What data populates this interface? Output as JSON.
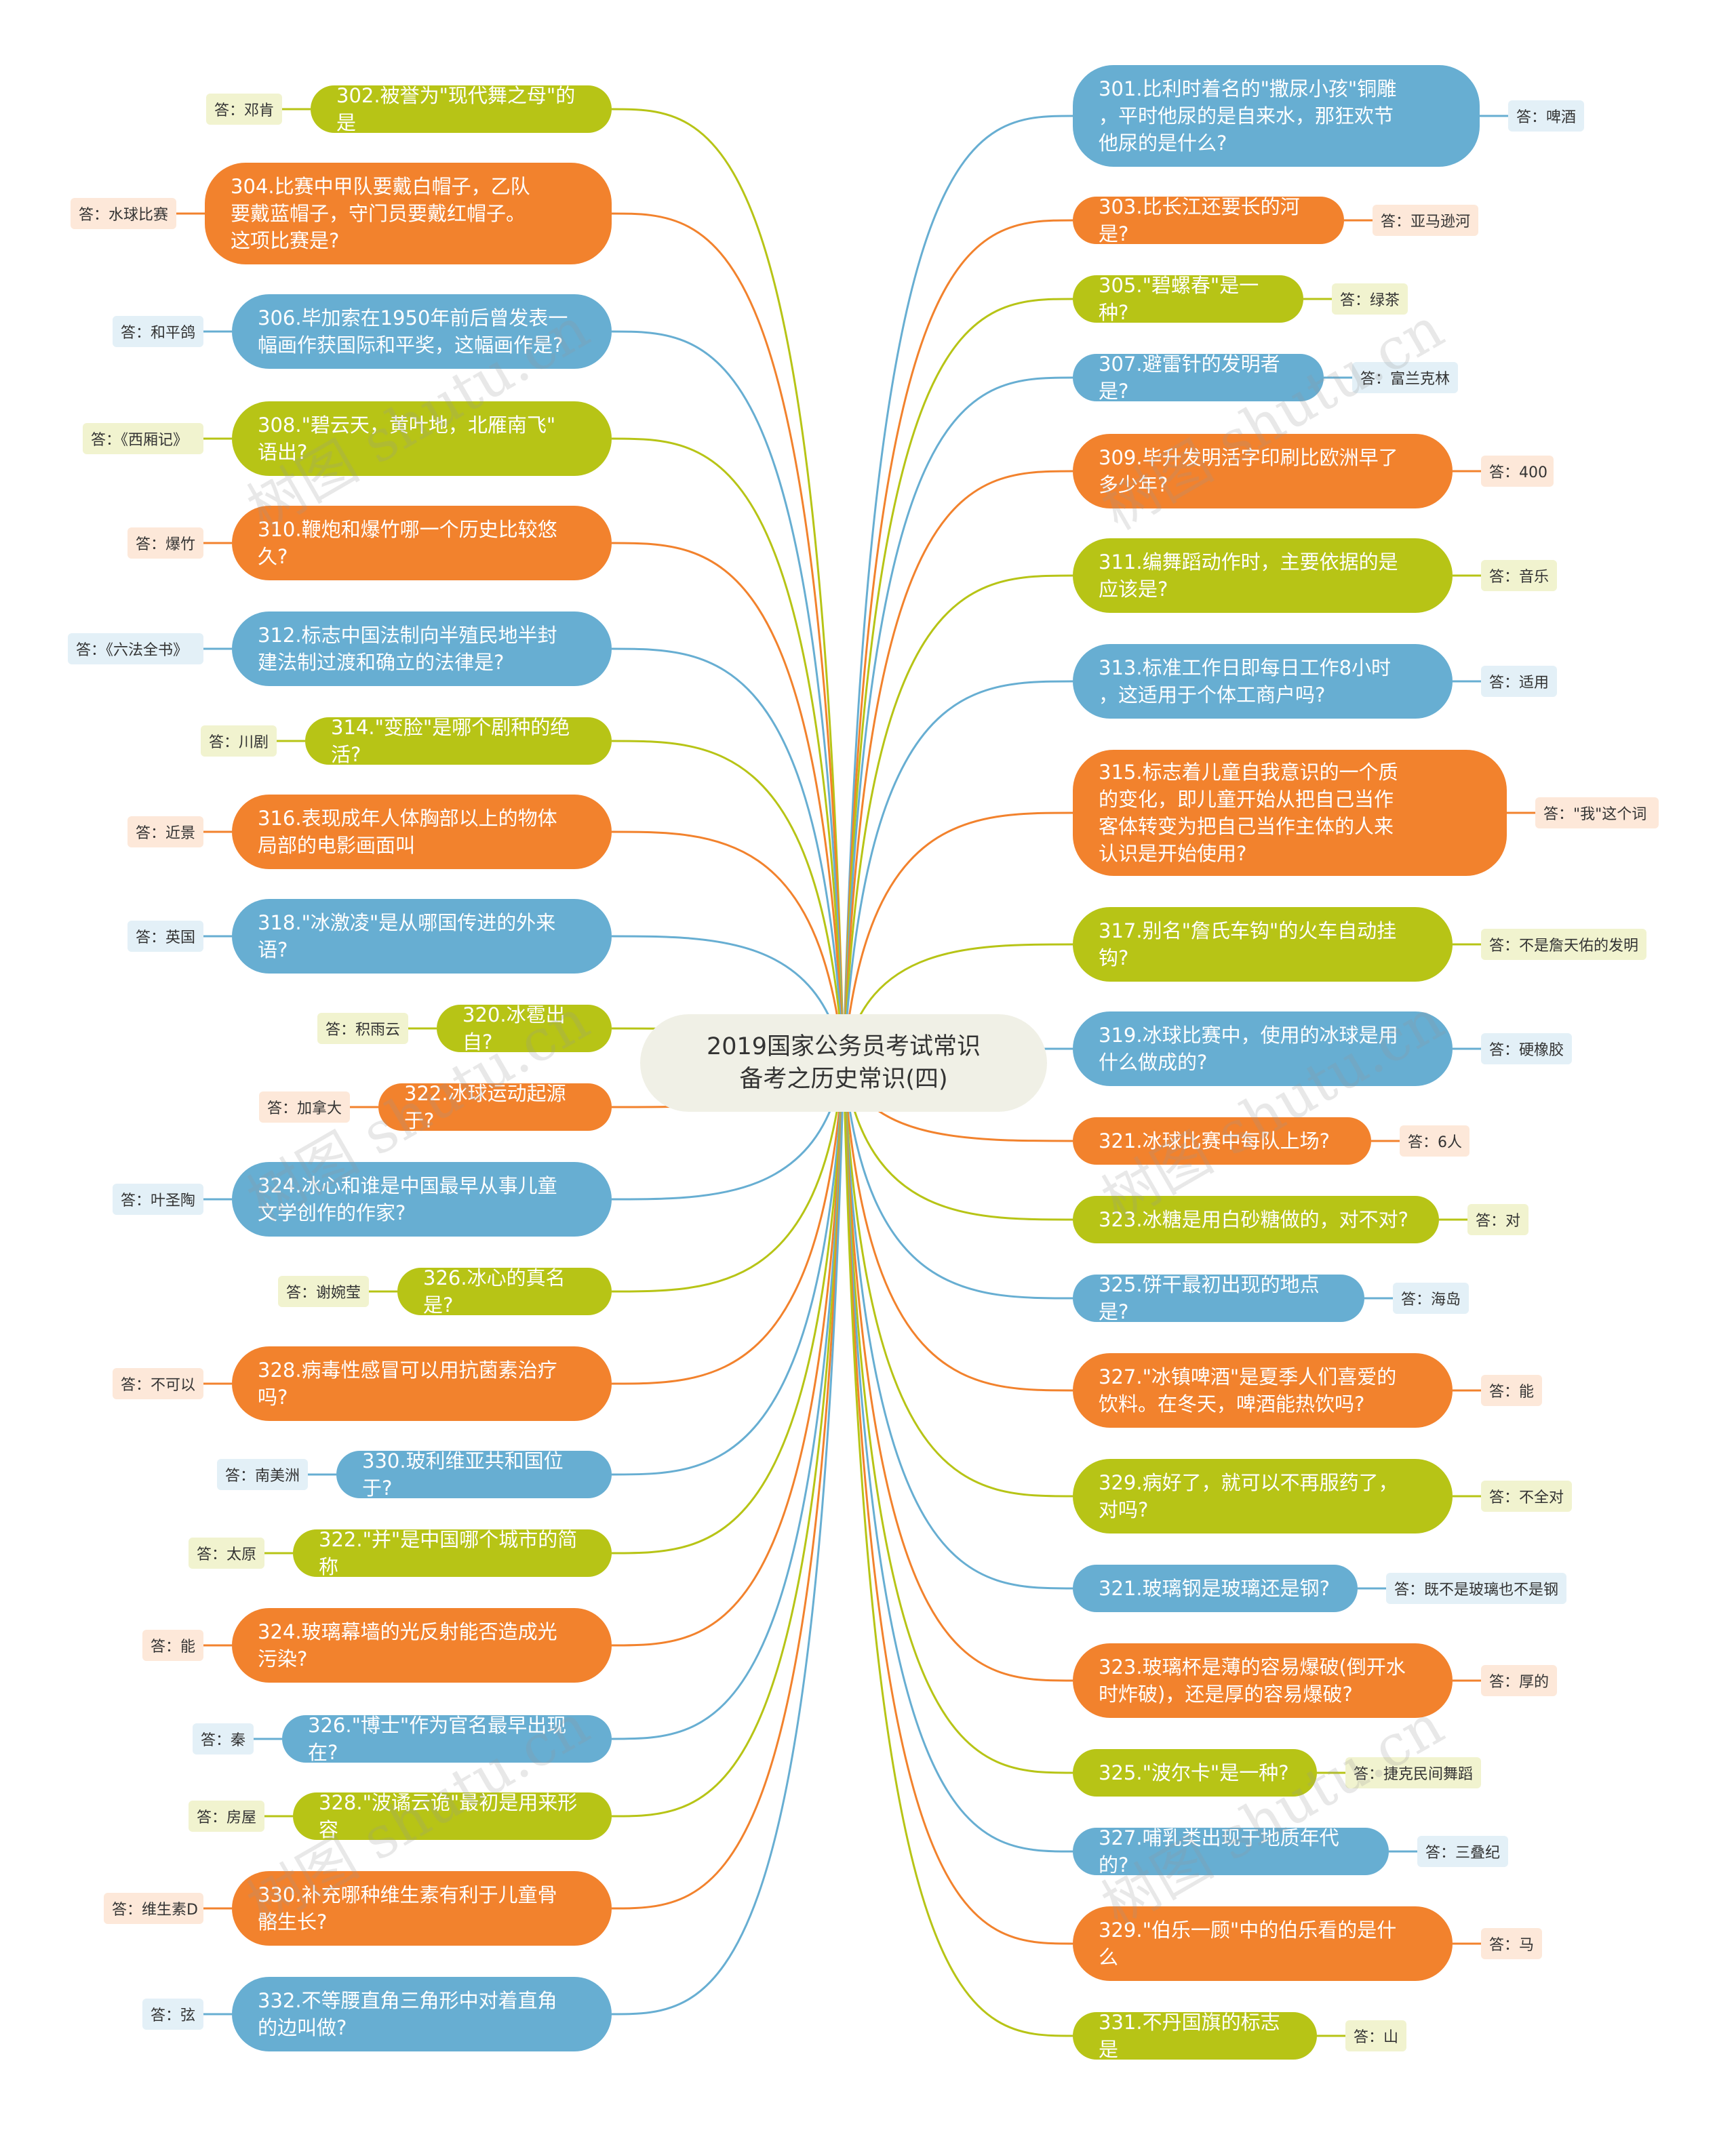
{
  "root": {
    "title": "2019国家公务员考试常识\n备考之历史常识(四)"
  },
  "colors": {
    "blue": "#67aed2",
    "orange": "#f2822d",
    "green": "#b7c416",
    "root_bg": "#f0f0e6"
  },
  "watermark": "树图 shutu.cn",
  "left": [
    {
      "q": "302.被誉为\"现代舞之母\"的是",
      "a": "答：邓肯",
      "color": "green"
    },
    {
      "q": "304.比赛中甲队要戴白帽子，乙队\n要戴蓝帽子，守门员要戴红帽子。\n这项比赛是?",
      "a": "答：水球比赛",
      "color": "orange"
    },
    {
      "q": "306.毕加索在1950年前后曾发表一\n幅画作获国际和平奖，这幅画作是?",
      "a": "答：和平鸽",
      "color": "blue"
    },
    {
      "q": "308.\"碧云天，黄叶地，北雁南飞\"\n语出?",
      "a": "答：《西厢记》",
      "color": "green"
    },
    {
      "q": "310.鞭炮和爆竹哪一个历史比较悠\n久?",
      "a": "答：爆竹",
      "color": "orange"
    },
    {
      "q": "312.标志中国法制向半殖民地半封\n建法制过渡和确立的法律是?",
      "a": "答：《六法全书》",
      "color": "blue"
    },
    {
      "q": "314.\"变脸\"是哪个剧种的绝活?",
      "a": "答：川剧",
      "color": "green"
    },
    {
      "q": "316.表现成年人体胸部以上的物体\n局部的电影画面叫",
      "a": "答：近景",
      "color": "orange"
    },
    {
      "q": "318.\"冰激凌\"是从哪国传进的外来\n语?",
      "a": "答：英国",
      "color": "blue"
    },
    {
      "q": "320.冰雹出自?",
      "a": "答：积雨云",
      "color": "green"
    },
    {
      "q": "322.冰球运动起源于?",
      "a": "答：加拿大",
      "color": "orange"
    },
    {
      "q": "324.冰心和谁是中国最早从事儿童\n文学创作的作家?",
      "a": "答：叶圣陶",
      "color": "blue"
    },
    {
      "q": "326.冰心的真名是?",
      "a": "答：谢婉莹",
      "color": "green"
    },
    {
      "q": "328.病毒性感冒可以用抗菌素治疗\n吗?",
      "a": "答：不可以",
      "color": "orange"
    },
    {
      "q": "330.玻利维亚共和国位于?",
      "a": "答：南美洲",
      "color": "blue"
    },
    {
      "q": "322.\"并\"是中国哪个城市的简称",
      "a": "答：太原",
      "color": "green"
    },
    {
      "q": "324.玻璃幕墙的光反射能否造成光\n污染?",
      "a": "答：能",
      "color": "orange"
    },
    {
      "q": "326.\"博士\"作为官名最早出现在?",
      "a": "答：秦",
      "color": "blue"
    },
    {
      "q": "328.\"波谲云诡\"最初是用来形容",
      "a": "答：房屋",
      "color": "green"
    },
    {
      "q": "330.补充哪种维生素有利于儿童骨\n骼生长?",
      "a": "答：维生素D",
      "color": "orange"
    },
    {
      "q": "332.不等腰直角三角形中对着直角\n的边叫做?",
      "a": "答：弦",
      "color": "blue"
    }
  ],
  "right": [
    {
      "q": "301.比利时着名的\"撒尿小孩\"铜雕\n，平时他尿的是自来水，那狂欢节\n他尿的是什么?",
      "a": "答：啤酒",
      "color": "blue"
    },
    {
      "q": "303.比长江还要长的河是?",
      "a": "答：亚马逊河",
      "color": "orange"
    },
    {
      "q": "305.\"碧螺春\"是一种?",
      "a": "答：绿茶",
      "color": "green"
    },
    {
      "q": "307.避雷针的发明者是?",
      "a": "答：富兰克林",
      "color": "blue"
    },
    {
      "q": "309.毕升发明活字印刷比欧洲早了\n多少年?",
      "a": "答：400",
      "color": "orange"
    },
    {
      "q": "311.编舞蹈动作时，主要依据的是\n应该是?",
      "a": "答：音乐",
      "color": "green"
    },
    {
      "q": "313.标准工作日即每日工作8小时\n，这适用于个体工商户吗?",
      "a": "答：适用",
      "color": "blue"
    },
    {
      "q": "315.标志着儿童自我意识的一个质\n的变化，即儿童开始从把自己当作\n客体转变为把自己当作主体的人来\n认识是开始使用?",
      "a": "答：\"我\"这个词",
      "color": "orange"
    },
    {
      "q": "317.别名\"詹氏车钩\"的火车自动挂\n钩?",
      "a": "答：不是詹天佑的发明",
      "color": "green"
    },
    {
      "q": "319.冰球比赛中，使用的冰球是用\n什么做成的?",
      "a": "答：硬橡胶",
      "color": "blue"
    },
    {
      "q": "321.冰球比赛中每队上场?",
      "a": "答：6人",
      "color": "orange"
    },
    {
      "q": "323.冰糖是用白砂糖做的，对不对?",
      "a": "答：对",
      "color": "green"
    },
    {
      "q": "325.饼干最初出现的地点是?",
      "a": "答：海岛",
      "color": "blue"
    },
    {
      "q": "327.\"冰镇啤酒\"是夏季人们喜爱的\n饮料。在冬天，啤酒能热饮吗?",
      "a": "答：能",
      "color": "orange"
    },
    {
      "q": "329.病好了，就可以不再服药了，\n对吗?",
      "a": "答：不全对",
      "color": "green"
    },
    {
      "q": "321.玻璃钢是玻璃还是钢?",
      "a": "答：既不是玻璃也不是钢",
      "color": "blue"
    },
    {
      "q": "323.玻璃杯是薄的容易爆破(倒开水\n时炸破)，还是厚的容易爆破?",
      "a": "答：厚的",
      "color": "orange"
    },
    {
      "q": "325.\"波尔卡\"是一种?",
      "a": "答：捷克民间舞蹈",
      "color": "green"
    },
    {
      "q": "327.哺乳类出现于地质年代的?",
      "a": "答：三叠纪",
      "color": "blue"
    },
    {
      "q": "329.\"伯乐一顾\"中的伯乐看的是什\n么",
      "a": "答：马",
      "color": "orange"
    },
    {
      "q": "331.不丹国旗的标志是",
      "a": "答：山",
      "color": "green"
    }
  ]
}
